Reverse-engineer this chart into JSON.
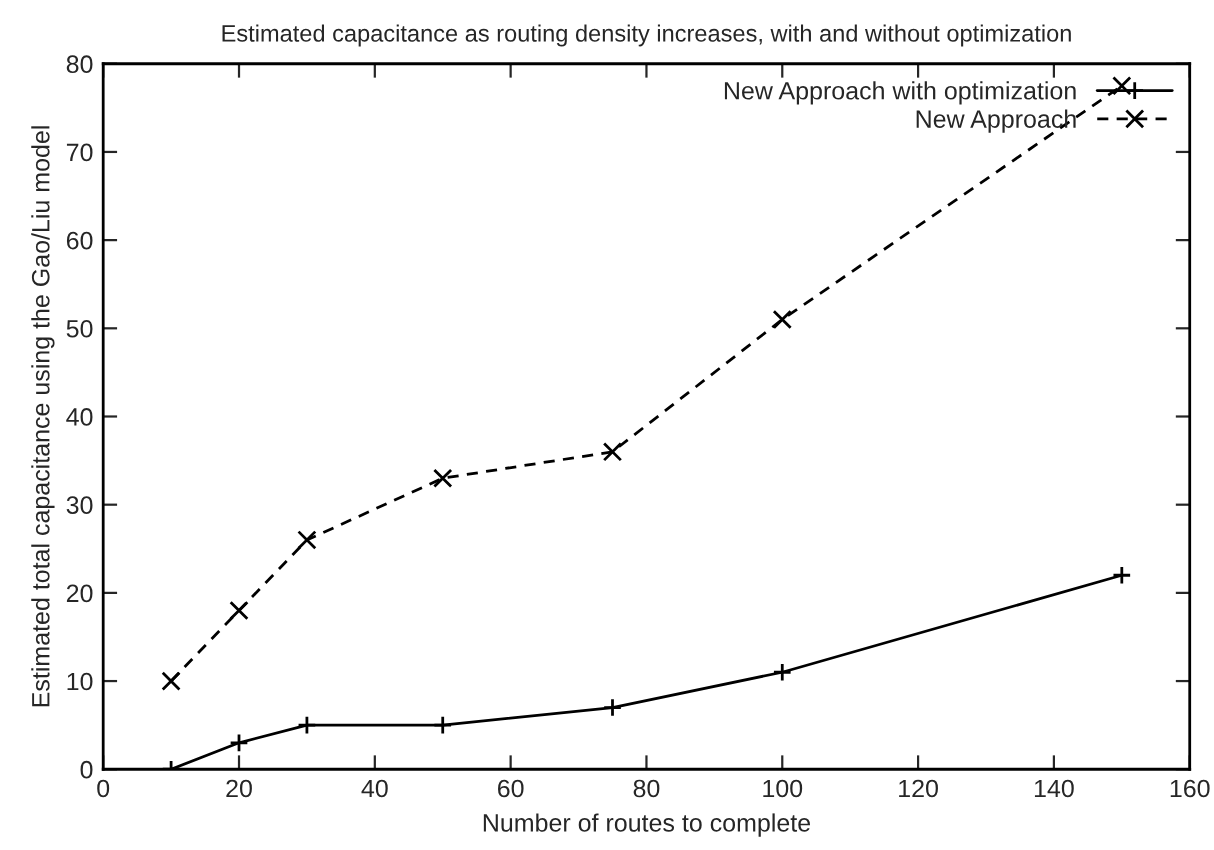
{
  "chart_data": {
    "type": "line",
    "title": "Estimated capacitance as routing density increases, with and without optimization",
    "xlabel": "Number of routes to complete",
    "ylabel": "Estimated total capacitance using the Gao/Liu model",
    "x": [
      10,
      20,
      30,
      50,
      75,
      100,
      150
    ],
    "series": [
      {
        "name": "New Approach with optimization",
        "color": "#000000",
        "values": [
          0,
          3,
          5,
          5,
          7,
          11,
          22
        ],
        "marker": "plus",
        "line_style": "solid"
      },
      {
        "name": "New Approach",
        "color": "#000000",
        "values": [
          10,
          18,
          26,
          33,
          36,
          51,
          77.5
        ],
        "marker": "cross",
        "line_style": "dashed"
      }
    ],
    "xlim": [
      0,
      160
    ],
    "xticks": [
      0,
      20,
      40,
      60,
      80,
      100,
      120,
      140,
      160
    ],
    "ylim": [
      0,
      80
    ],
    "yticks": [
      0,
      10,
      20,
      30,
      40,
      50,
      60,
      70,
      80
    ],
    "grid": false,
    "legend": "top right"
  }
}
